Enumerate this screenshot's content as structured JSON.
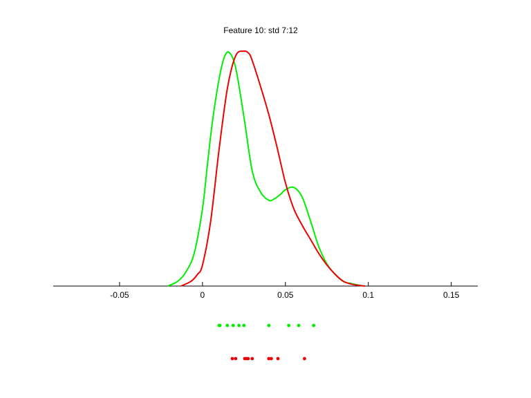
{
  "chart_data": {
    "type": "line",
    "title": "Feature 10: std 7:12",
    "xlabel": "",
    "ylabel": "",
    "xlim": [
      -0.09,
      0.166
    ],
    "ylim": [
      0,
      1
    ],
    "xticks": [
      -0.05,
      0,
      0.05,
      0.1,
      0.15
    ],
    "xtick_labels": [
      "-0.05",
      "0",
      "0.05",
      "0.1",
      "0.15"
    ],
    "grid": false,
    "legend": "none",
    "series": [
      {
        "color": "#00ee00",
        "x": [
          -0.021,
          -0.015,
          -0.01,
          -0.005,
          0.0,
          0.003,
          0.006,
          0.01,
          0.013,
          0.016,
          0.02,
          0.025,
          0.03,
          0.035,
          0.04,
          0.043,
          0.047,
          0.05,
          0.055,
          0.06,
          0.065,
          0.07,
          0.075,
          0.08,
          0.085,
          0.09,
          0.095,
          0.098
        ],
        "y": [
          0.0,
          0.02,
          0.06,
          0.14,
          0.33,
          0.52,
          0.7,
          0.88,
          0.97,
          0.995,
          0.93,
          0.72,
          0.49,
          0.4,
          0.365,
          0.37,
          0.39,
          0.41,
          0.42,
          0.38,
          0.28,
          0.17,
          0.095,
          0.05,
          0.02,
          0.01,
          0.003,
          0.0
        ]
      },
      {
        "color": "#ee0000",
        "x": [
          -0.013,
          -0.007,
          -0.003,
          0.0,
          0.005,
          0.01,
          0.015,
          0.02,
          0.025,
          0.028,
          0.03,
          0.035,
          0.04,
          0.045,
          0.05,
          0.055,
          0.06,
          0.065,
          0.07,
          0.075,
          0.08,
          0.085,
          0.09,
          0.095,
          0.098
        ],
        "y": [
          0.0,
          0.02,
          0.05,
          0.09,
          0.28,
          0.58,
          0.84,
          0.98,
          1.0,
          0.99,
          0.96,
          0.85,
          0.73,
          0.59,
          0.44,
          0.33,
          0.26,
          0.2,
          0.14,
          0.09,
          0.05,
          0.02,
          0.008,
          0.002,
          0.0
        ]
      }
    ],
    "rug": [
      {
        "color": "#00ee00",
        "x": [
          0.01,
          0.0105,
          0.015,
          0.0185,
          0.022,
          0.025,
          0.04,
          0.052,
          0.058,
          0.067
        ]
      },
      {
        "color": "#ee0000",
        "x": [
          0.018,
          0.02,
          0.0255,
          0.0265,
          0.0275,
          0.03,
          0.04,
          0.0415,
          0.0455,
          0.0615
        ]
      }
    ]
  }
}
